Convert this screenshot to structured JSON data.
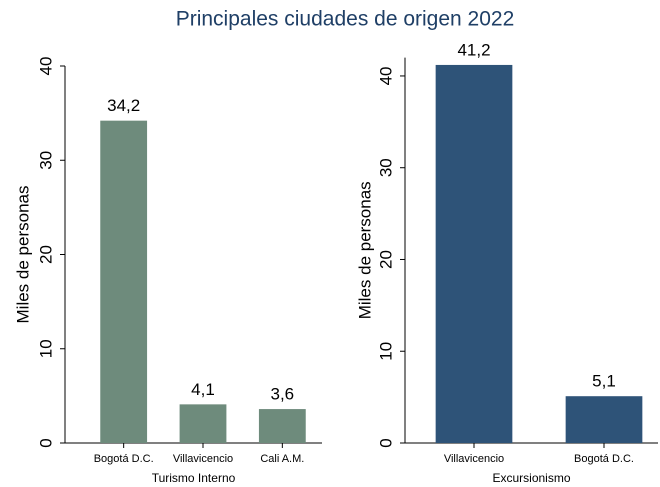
{
  "title": "Principales ciudades de origen 2022",
  "chart_data": [
    {
      "type": "bar",
      "xlabel": "Turismo Interno",
      "ylabel": "Miles de personas",
      "categories": [
        "Bogotá D.C.",
        "Villavicencio",
        "Cali A.M."
      ],
      "values": [
        34.2,
        4.1,
        3.6
      ],
      "value_labels": [
        "34,2",
        "4,1",
        "3,6"
      ],
      "color": "#6e8b7c",
      "ylim": [
        0,
        40
      ],
      "yticks": [
        0,
        10,
        20,
        30,
        40
      ]
    },
    {
      "type": "bar",
      "xlabel": "Excursionismo",
      "ylabel": "Miles de personas",
      "categories": [
        "Villavicencio",
        "Bogotá D.C."
      ],
      "values": [
        41.2,
        5.1
      ],
      "value_labels": [
        "41,2",
        "5,1"
      ],
      "color": "#2e5378",
      "ylim": [
        0,
        42
      ],
      "yticks": [
        0,
        10,
        20,
        30,
        40
      ]
    }
  ]
}
